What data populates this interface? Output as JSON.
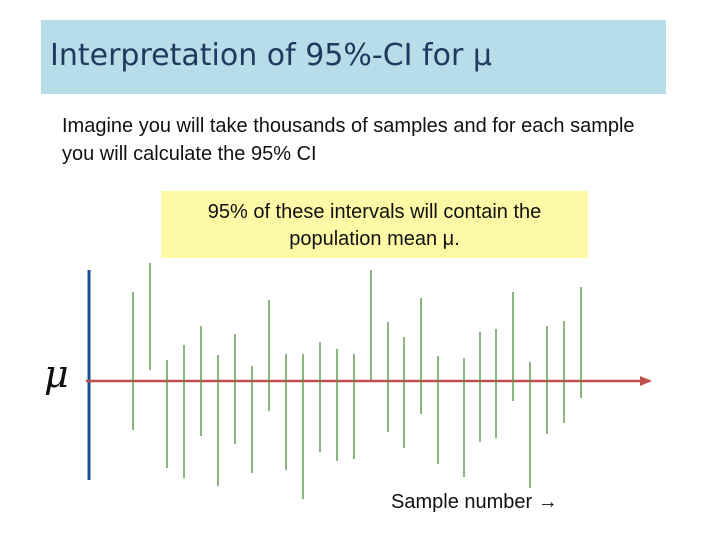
{
  "title": "Interpretation of 95%-CI for μ",
  "intro": "Imagine you will take thousands of samples and for each sample you will calculate the 95% CI",
  "callout": {
    "line1": "95% of these intervals will contain the",
    "line2": "population mean μ."
  },
  "mu_symbol": "μ",
  "x_axis_label": "Sample number →",
  "colors": {
    "title_bg": "#b7dde8",
    "callout_bg": "#fdf9a6",
    "mean_line": "#c0504d",
    "interval": "#4e8f3a",
    "axis": "#1f4e9a"
  }
}
